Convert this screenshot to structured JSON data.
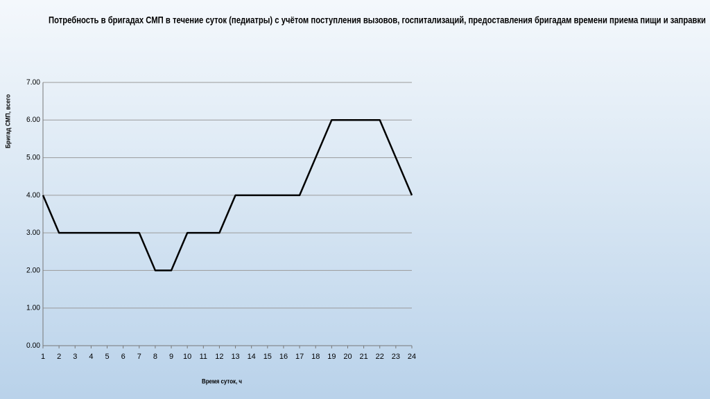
{
  "chart_data": {
    "type": "line",
    "title": "Потребность в бригадах СМП в течение суток (педиатры) с учётом поступления вызовов, госпитализаций, предоставления бригадам времени приема пищи и заправки",
    "x_label": "Время суток, ч",
    "y_label": "Бригад СМП, всего",
    "x": [
      1,
      2,
      3,
      4,
      5,
      6,
      7,
      8,
      9,
      10,
      11,
      12,
      13,
      14,
      15,
      16,
      17,
      18,
      19,
      20,
      21,
      22,
      23,
      24
    ],
    "xlim": [
      1,
      24
    ],
    "xticks": [
      1,
      2,
      3,
      4,
      5,
      6,
      7,
      8,
      9,
      10,
      11,
      12,
      13,
      14,
      15,
      16,
      17,
      18,
      19,
      20,
      21,
      22,
      23,
      24
    ],
    "series": [
      {
        "name": "Бригад СМП",
        "color": "#000000",
        "values": [
          4,
          3,
          3,
          3,
          3,
          3,
          3,
          2,
          2,
          3,
          3,
          3,
          4,
          4,
          4,
          4,
          4,
          5,
          6,
          6,
          6,
          6,
          5,
          4
        ]
      }
    ],
    "ylim": [
      0,
      7
    ],
    "yticks": [
      {
        "value": 0,
        "label": "0.00"
      },
      {
        "value": 1,
        "label": "1.00"
      },
      {
        "value": 2,
        "label": "2.00"
      },
      {
        "value": 3,
        "label": "3.00"
      },
      {
        "value": 4,
        "label": "4.00"
      },
      {
        "value": 5,
        "label": "5.00"
      },
      {
        "value": 6,
        "label": "6.00"
      },
      {
        "value": 7,
        "label": "7.00"
      }
    ],
    "grid": true
  }
}
